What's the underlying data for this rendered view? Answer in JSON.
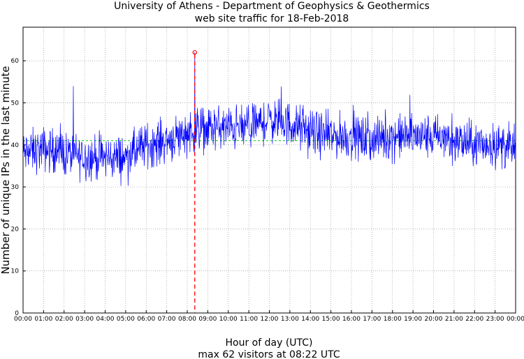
{
  "chart_data": {
    "type": "line",
    "title": "University of Athens - Department of Geophysics & Geothermics",
    "subtitle": "web site traffic for 18-Feb-2018",
    "xlabel": "Hour of day (UTC)",
    "xlabel_note": "max 62 visitors at 08:22 UTC",
    "ylabel": "Number of unique IPs in the last minute",
    "ylim": [
      0,
      68
    ],
    "xlim_minutes": [
      0,
      1440
    ],
    "grid": true,
    "y_ticks": [
      "0",
      "10",
      "20",
      "30",
      "40",
      "50",
      "60"
    ],
    "x_ticks": [
      "00:00",
      "01:00",
      "02:00",
      "03:00",
      "04:00",
      "05:00",
      "06:00",
      "07:00",
      "08:00",
      "09:00",
      "10:00",
      "11:00",
      "12:00",
      "13:00",
      "14:00",
      "15:00",
      "16:00",
      "17:00",
      "18:00",
      "19:00",
      "20:00",
      "21:00",
      "22:00",
      "23:00",
      "00:00"
    ],
    "series_color": "#0000ff",
    "mean_line": {
      "value": 41,
      "color": "#00cc00"
    },
    "peak": {
      "time": "08:22",
      "minute": 502,
      "value": 62,
      "color": "#ff0000"
    },
    "trend_hourly": {
      "hours": [
        0,
        1,
        2,
        3,
        4,
        5,
        6,
        7,
        8,
        9,
        10,
        11,
        12,
        13,
        14,
        15,
        16,
        17,
        18,
        19,
        20,
        21,
        22,
        23,
        24
      ],
      "values": [
        38,
        39,
        38,
        37,
        37,
        37,
        40,
        41,
        43,
        44,
        44,
        44,
        46,
        45,
        43,
        42,
        42,
        41,
        42,
        42,
        42,
        41,
        40,
        40,
        39
      ]
    }
  }
}
